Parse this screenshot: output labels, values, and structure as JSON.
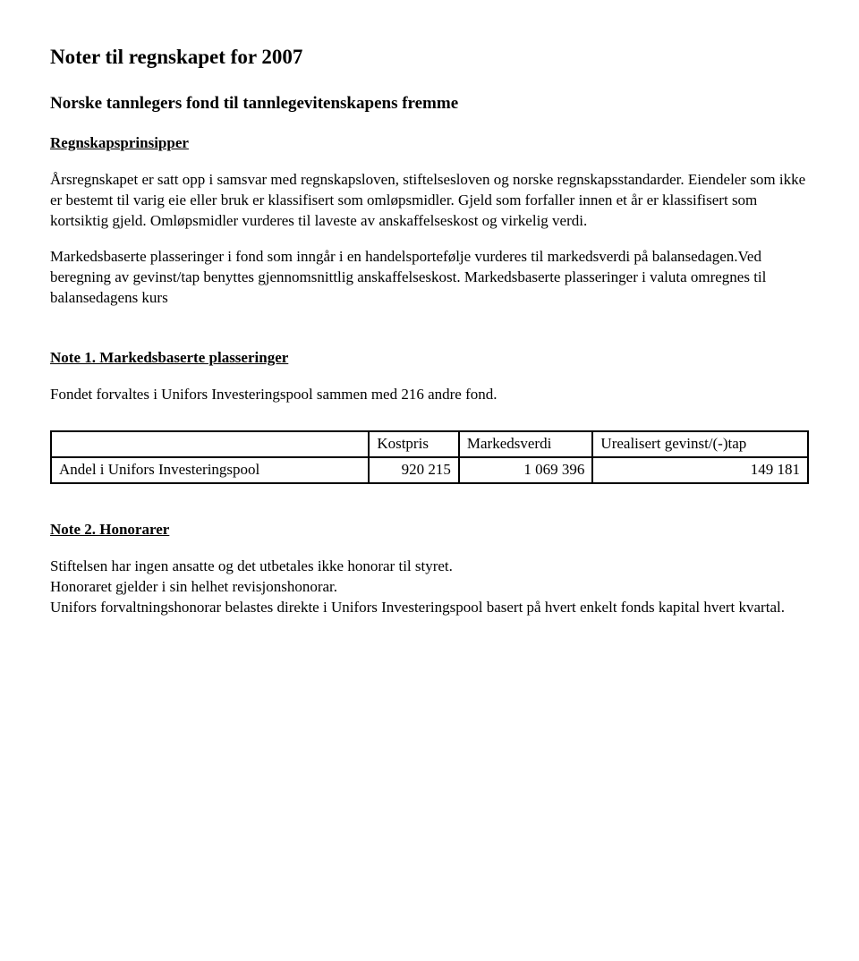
{
  "title": "Noter til regnskapet for 2007",
  "subtitle": "Norske tannlegers fond til tannlegevitenskapens fremme",
  "principles_heading": "Regnskapsprinsipper",
  "para1": "Årsregnskapet er satt opp i samsvar med regnskapsloven, stiftelsesloven og norske regnskapsstandarder. Eiendeler som ikke er bestemt til varig eie eller bruk er klassifisert som omløpsmidler. Gjeld som forfaller innen et år er klassifisert som kortsiktig gjeld. Omløpsmidler vurderes til laveste av anskaffelseskost og virkelig verdi.",
  "para2": "Markedsbaserte plasseringer i fond som inngår i en handelsportefølje vurderes til markedsverdi på balansedagen.Ved beregning av gevinst/tap benyttes gjennomsnittlig anskaffelseskost. Markedsbaserte plasseringer i valuta omregnes til balansedagens kurs",
  "note1_heading": "Note 1. Markedsbaserte plasseringer",
  "note1_text": "Fondet forvaltes i Unifors Investeringspool sammen med 216 andre fond.",
  "table": {
    "headers": {
      "c1": "",
      "c2": "Kostpris",
      "c3": "Markedsverdi",
      "c4": "Urealisert gevinst/(-)tap"
    },
    "row": {
      "c1": "Andel i Unifors Investeringspool",
      "c2": "920 215",
      "c3": "1 069 396",
      "c4": "149 181"
    }
  },
  "note2_heading": "Note 2. Honorarer",
  "note2_p1": "Stiftelsen har ingen ansatte og det utbetales ikke honorar til styret.",
  "note2_p2": "Honoraret gjelder i sin helhet revisjonshonorar.",
  "note2_p3": "Unifors forvaltningshonorar belastes direkte i Unifors Investeringspool basert på hvert enkelt fonds kapital hvert kvartal."
}
